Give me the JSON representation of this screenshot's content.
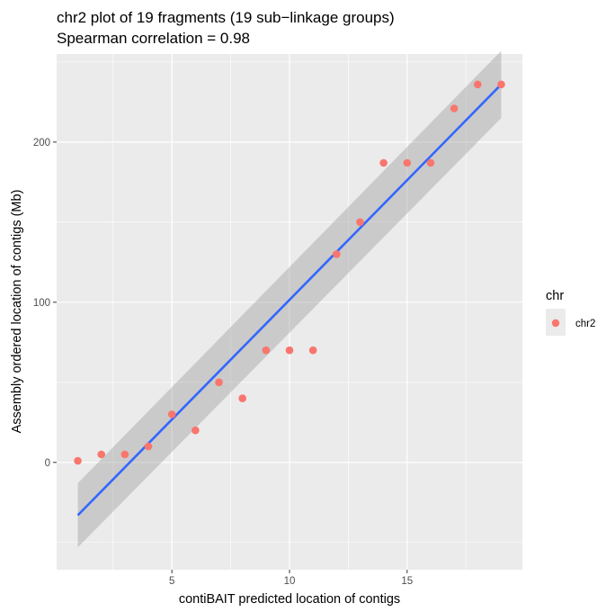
{
  "chart_data": {
    "type": "scatter",
    "title": "chr2 plot of 19 fragments (19 sub−linkage groups)",
    "subtitle": "Spearman correlation = 0.98",
    "xlabel": "contiBAIT predicted location of contigs",
    "ylabel": "Assembly ordered location of contigs (Mb)",
    "xlim": [
      0.1,
      19.9
    ],
    "ylim": [
      -67,
      255
    ],
    "x_ticks": [
      5,
      10,
      15
    ],
    "x_tick_labels": [
      "5",
      "10",
      "15"
    ],
    "y_ticks": [
      0,
      100,
      200
    ],
    "y_tick_labels": [
      "0",
      "100",
      "200"
    ],
    "grid": true,
    "legend": {
      "title": "chr",
      "entries": [
        "chr2"
      ],
      "placement": "right"
    },
    "series": [
      {
        "name": "chr2",
        "color": "#f8766d",
        "points": [
          {
            "x": 1,
            "y": 1
          },
          {
            "x": 2,
            "y": 5
          },
          {
            "x": 3,
            "y": 5
          },
          {
            "x": 4,
            "y": 10
          },
          {
            "x": 5,
            "y": 30
          },
          {
            "x": 6,
            "y": 20
          },
          {
            "x": 7,
            "y": 50
          },
          {
            "x": 8,
            "y": 40
          },
          {
            "x": 9,
            "y": 70
          },
          {
            "x": 10,
            "y": 70
          },
          {
            "x": 11,
            "y": 70
          },
          {
            "x": 12,
            "y": 130
          },
          {
            "x": 13,
            "y": 150
          },
          {
            "x": 14,
            "y": 187
          },
          {
            "x": 15,
            "y": 187
          },
          {
            "x": 16,
            "y": 187
          },
          {
            "x": 17,
            "y": 221
          },
          {
            "x": 18,
            "y": 236
          },
          {
            "x": 19,
            "y": 236
          }
        ]
      }
    ],
    "fit": {
      "method": "linear",
      "color": "#3366ff",
      "x": [
        1,
        19
      ],
      "y": [
        -33,
        236
      ],
      "band_color": "#999999",
      "band_lower": [
        -53,
        215
      ],
      "band_upper": [
        -13,
        257
      ]
    }
  }
}
